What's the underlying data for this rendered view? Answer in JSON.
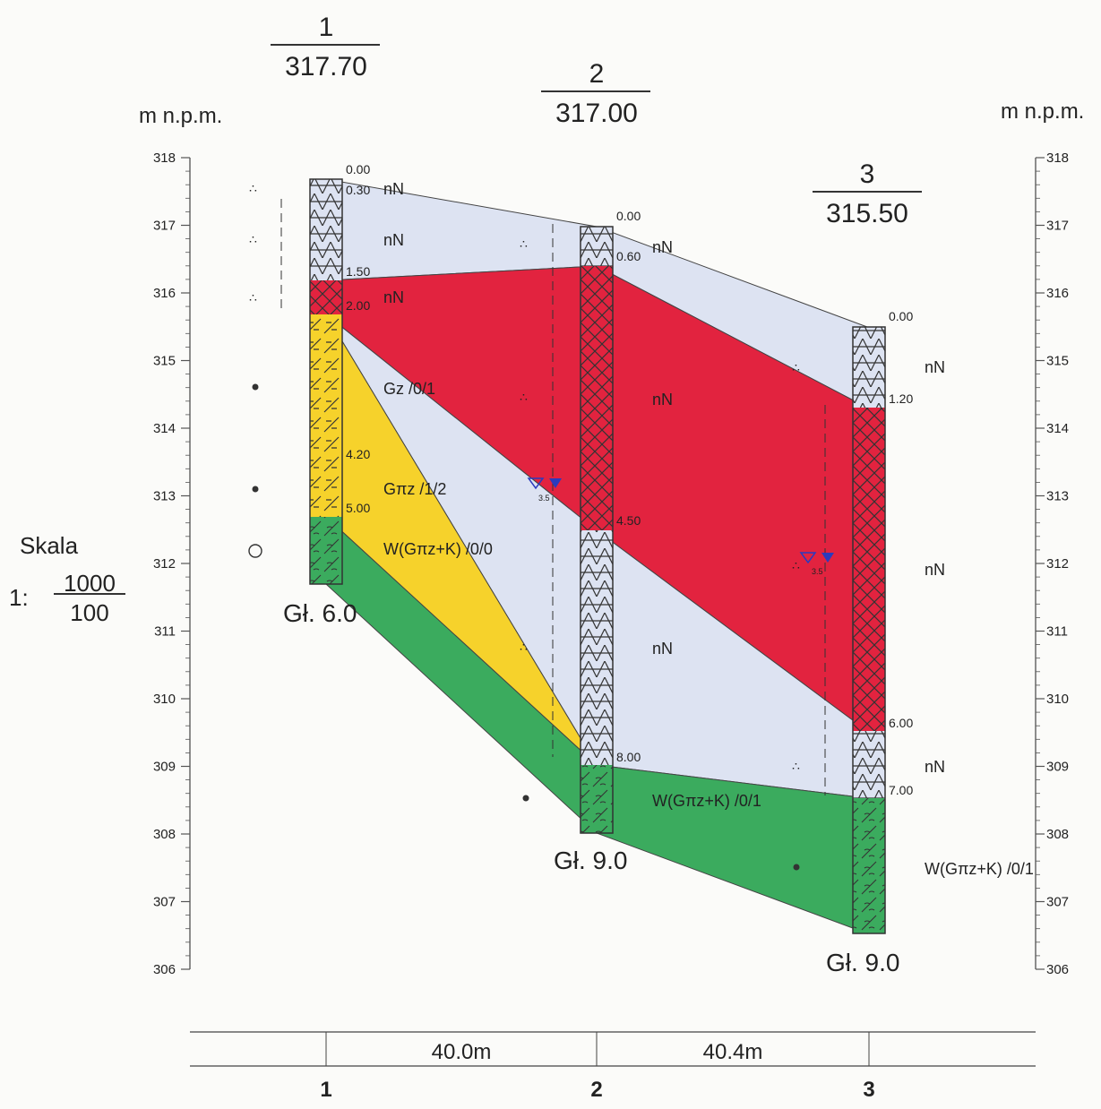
{
  "units": {
    "left": "m n.p.m.",
    "right": "m n.p.m."
  },
  "scale": {
    "label": "Skala",
    "prefix": "1:",
    "numerator": "1000",
    "denominator": "100"
  },
  "axis": {
    "min": 306,
    "max": 318,
    "ticks": [
      "318",
      "317",
      "316",
      "315",
      "314",
      "313",
      "312",
      "311",
      "310",
      "309",
      "308",
      "307",
      "306"
    ]
  },
  "colors": {
    "nN": "#dde3f2",
    "nN_red": "#e2233f",
    "Gz": "#f6d22b",
    "W": "#3bab5e",
    "line": "#333333",
    "water": "#2b3bbd"
  },
  "boreholes": [
    {
      "id": "1",
      "elevation": "317.70",
      "elev_value": 317.7,
      "x_m": 0,
      "depth_label": "Gł. 6.0",
      "depth": 6.0,
      "depths": [
        "0.00",
        "0.30",
        "1.50",
        "2.00",
        "4.20",
        "5.00"
      ],
      "layers": [
        {
          "from": 0.0,
          "to": 1.5,
          "soil": "nN"
        },
        {
          "from": 1.5,
          "to": 2.0,
          "soil": "nN_red"
        },
        {
          "from": 2.0,
          "to": 5.0,
          "soil": "Gz"
        },
        {
          "from": 5.0,
          "to": 6.0,
          "soil": "W"
        }
      ]
    },
    {
      "id": "2",
      "elevation": "317.00",
      "elev_value": 317.0,
      "x_m": 40.0,
      "depth_label": "Gł. 9.0",
      "depth": 9.0,
      "depths": [
        "0.00",
        "0.60",
        "4.50",
        "8.00"
      ],
      "layers": [
        {
          "from": 0.0,
          "to": 0.6,
          "soil": "nN"
        },
        {
          "from": 0.6,
          "to": 4.5,
          "soil": "nN_red"
        },
        {
          "from": 4.5,
          "to": 8.0,
          "soil": "nN"
        },
        {
          "from": 8.0,
          "to": 9.0,
          "soil": "W"
        }
      ]
    },
    {
      "id": "3",
      "elevation": "315.50",
      "elev_value": 315.5,
      "x_m": 80.4,
      "depth_label": "Gł. 9.0",
      "depth": 9.0,
      "depths": [
        "0.00",
        "1.20",
        "6.00",
        "7.00"
      ],
      "layers": [
        {
          "from": 0.0,
          "to": 1.2,
          "soil": "nN"
        },
        {
          "from": 1.2,
          "to": 6.0,
          "soil": "nN_red"
        },
        {
          "from": 6.0,
          "to": 7.0,
          "soil": "nN"
        },
        {
          "from": 7.0,
          "to": 9.0,
          "soil": "W"
        }
      ]
    }
  ],
  "layer_labels": {
    "bh1_nN_1": "nN",
    "bh1_nN_2": "nN",
    "bh1_nN_3": "nN",
    "gz": "Gz /0/1",
    "gpz": "Gπz /1/2",
    "w1": "W(Gπz+K) /0/0",
    "mid_nN_1": "nN",
    "mid_nN_2": "nN",
    "mid_nN_3": "nN",
    "w2": "W(Gπz+K) /0/1",
    "bh3_nN_1": "nN",
    "bh3_nN_2": "nN",
    "bh3_nN_3": "nN",
    "w3": "W(Gπz+K) /0/1"
  },
  "water_table": {
    "symbol": "3.5"
  },
  "distances": {
    "d12": "40.0m",
    "d23": "40.4m",
    "labels": [
      "1",
      "2",
      "3"
    ]
  }
}
